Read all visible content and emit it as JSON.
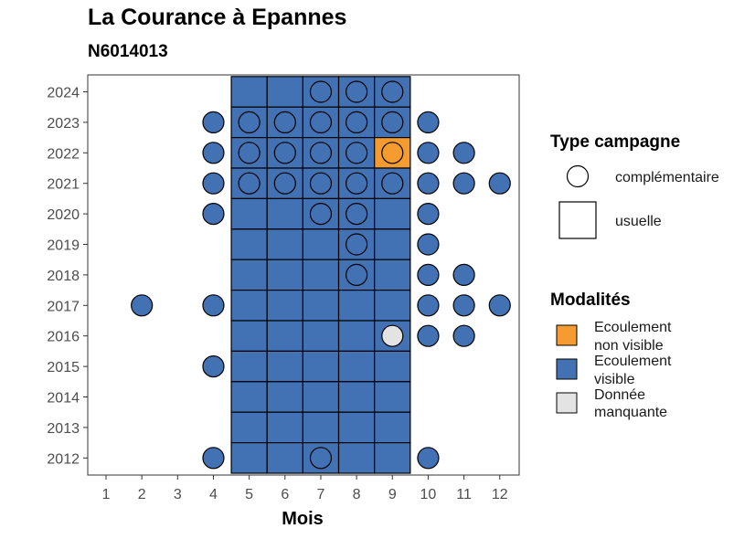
{
  "chart_data": {
    "type": "heatmap",
    "title": "La Courance à Epannes",
    "subtitle": "N6014013",
    "xlabel": "Mois",
    "ylabel": "",
    "x_ticks": [
      "1",
      "2",
      "3",
      "4",
      "5",
      "6",
      "7",
      "8",
      "9",
      "10",
      "11",
      "12"
    ],
    "y_ticks": [
      "2012",
      "2013",
      "2014",
      "2015",
      "2016",
      "2017",
      "2018",
      "2019",
      "2020",
      "2021",
      "2022",
      "2023",
      "2024"
    ],
    "grid": false,
    "legend_position": "right",
    "legend_shape": {
      "title": "Type campagne",
      "items": [
        {
          "label": "complémentaire",
          "shape": "circle"
        },
        {
          "label": "usuelle",
          "shape": "square"
        }
      ]
    },
    "legend_fill": {
      "title": "Modalités",
      "items": [
        {
          "key": "ecoulement_non_visible",
          "label_lines": [
            "Ecoulement",
            "non visible"
          ],
          "color": "#f59b2f"
        },
        {
          "key": "ecoulement_visible",
          "label_lines": [
            "Ecoulement",
            "visible"
          ],
          "color": "#4372b4"
        },
        {
          "key": "donnee_manquante",
          "label_lines": [
            "Donnée",
            "manquante"
          ],
          "color": "#e3e3e3"
        }
      ]
    },
    "squares": [
      {
        "month": 5,
        "year": 2024,
        "modalite": "ecoulement_visible"
      },
      {
        "month": 6,
        "year": 2024,
        "modalite": "ecoulement_visible"
      },
      {
        "month": 7,
        "year": 2024,
        "modalite": "ecoulement_visible"
      },
      {
        "month": 8,
        "year": 2024,
        "modalite": "ecoulement_visible"
      },
      {
        "month": 9,
        "year": 2024,
        "modalite": "ecoulement_visible"
      },
      {
        "month": 5,
        "year": 2023,
        "modalite": "ecoulement_visible"
      },
      {
        "month": 6,
        "year": 2023,
        "modalite": "ecoulement_visible"
      },
      {
        "month": 7,
        "year": 2023,
        "modalite": "ecoulement_visible"
      },
      {
        "month": 8,
        "year": 2023,
        "modalite": "ecoulement_visible"
      },
      {
        "month": 9,
        "year": 2023,
        "modalite": "ecoulement_visible"
      },
      {
        "month": 5,
        "year": 2022,
        "modalite": "ecoulement_visible"
      },
      {
        "month": 6,
        "year": 2022,
        "modalite": "ecoulement_visible"
      },
      {
        "month": 7,
        "year": 2022,
        "modalite": "ecoulement_visible"
      },
      {
        "month": 8,
        "year": 2022,
        "modalite": "ecoulement_visible"
      },
      {
        "month": 9,
        "year": 2022,
        "modalite": "ecoulement_non_visible"
      },
      {
        "month": 5,
        "year": 2021,
        "modalite": "ecoulement_visible"
      },
      {
        "month": 6,
        "year": 2021,
        "modalite": "ecoulement_visible"
      },
      {
        "month": 7,
        "year": 2021,
        "modalite": "ecoulement_visible"
      },
      {
        "month": 8,
        "year": 2021,
        "modalite": "ecoulement_visible"
      },
      {
        "month": 9,
        "year": 2021,
        "modalite": "ecoulement_visible"
      },
      {
        "month": 5,
        "year": 2020,
        "modalite": "ecoulement_visible"
      },
      {
        "month": 6,
        "year": 2020,
        "modalite": "ecoulement_visible"
      },
      {
        "month": 7,
        "year": 2020,
        "modalite": "ecoulement_visible"
      },
      {
        "month": 8,
        "year": 2020,
        "modalite": "ecoulement_visible"
      },
      {
        "month": 9,
        "year": 2020,
        "modalite": "ecoulement_visible"
      },
      {
        "month": 5,
        "year": 2019,
        "modalite": "ecoulement_visible"
      },
      {
        "month": 6,
        "year": 2019,
        "modalite": "ecoulement_visible"
      },
      {
        "month": 7,
        "year": 2019,
        "modalite": "ecoulement_visible"
      },
      {
        "month": 8,
        "year": 2019,
        "modalite": "ecoulement_visible"
      },
      {
        "month": 9,
        "year": 2019,
        "modalite": "ecoulement_visible"
      },
      {
        "month": 5,
        "year": 2018,
        "modalite": "ecoulement_visible"
      },
      {
        "month": 6,
        "year": 2018,
        "modalite": "ecoulement_visible"
      },
      {
        "month": 7,
        "year": 2018,
        "modalite": "ecoulement_visible"
      },
      {
        "month": 8,
        "year": 2018,
        "modalite": "ecoulement_visible"
      },
      {
        "month": 9,
        "year": 2018,
        "modalite": "ecoulement_visible"
      },
      {
        "month": 5,
        "year": 2017,
        "modalite": "ecoulement_visible"
      },
      {
        "month": 6,
        "year": 2017,
        "modalite": "ecoulement_visible"
      },
      {
        "month": 7,
        "year": 2017,
        "modalite": "ecoulement_visible"
      },
      {
        "month": 8,
        "year": 2017,
        "modalite": "ecoulement_visible"
      },
      {
        "month": 9,
        "year": 2017,
        "modalite": "ecoulement_visible"
      },
      {
        "month": 5,
        "year": 2016,
        "modalite": "ecoulement_visible"
      },
      {
        "month": 6,
        "year": 2016,
        "modalite": "ecoulement_visible"
      },
      {
        "month": 7,
        "year": 2016,
        "modalite": "ecoulement_visible"
      },
      {
        "month": 8,
        "year": 2016,
        "modalite": "ecoulement_visible"
      },
      {
        "month": 9,
        "year": 2016,
        "modalite": "ecoulement_visible"
      },
      {
        "month": 5,
        "year": 2015,
        "modalite": "ecoulement_visible"
      },
      {
        "month": 6,
        "year": 2015,
        "modalite": "ecoulement_visible"
      },
      {
        "month": 7,
        "year": 2015,
        "modalite": "ecoulement_visible"
      },
      {
        "month": 8,
        "year": 2015,
        "modalite": "ecoulement_visible"
      },
      {
        "month": 9,
        "year": 2015,
        "modalite": "ecoulement_visible"
      },
      {
        "month": 5,
        "year": 2014,
        "modalite": "ecoulement_visible"
      },
      {
        "month": 6,
        "year": 2014,
        "modalite": "ecoulement_visible"
      },
      {
        "month": 7,
        "year": 2014,
        "modalite": "ecoulement_visible"
      },
      {
        "month": 8,
        "year": 2014,
        "modalite": "ecoulement_visible"
      },
      {
        "month": 9,
        "year": 2014,
        "modalite": "ecoulement_visible"
      },
      {
        "month": 5,
        "year": 2013,
        "modalite": "ecoulement_visible"
      },
      {
        "month": 6,
        "year": 2013,
        "modalite": "ecoulement_visible"
      },
      {
        "month": 7,
        "year": 2013,
        "modalite": "ecoulement_visible"
      },
      {
        "month": 8,
        "year": 2013,
        "modalite": "ecoulement_visible"
      },
      {
        "month": 9,
        "year": 2013,
        "modalite": "ecoulement_visible"
      },
      {
        "month": 5,
        "year": 2012,
        "modalite": "ecoulement_visible"
      },
      {
        "month": 6,
        "year": 2012,
        "modalite": "ecoulement_visible"
      },
      {
        "month": 7,
        "year": 2012,
        "modalite": "ecoulement_visible"
      },
      {
        "month": 8,
        "year": 2012,
        "modalite": "ecoulement_visible"
      },
      {
        "month": 9,
        "year": 2012,
        "modalite": "ecoulement_visible"
      }
    ],
    "circles": [
      {
        "month": 7,
        "year": 2024,
        "modalite": "ecoulement_visible"
      },
      {
        "month": 8,
        "year": 2024,
        "modalite": "ecoulement_visible"
      },
      {
        "month": 9,
        "year": 2024,
        "modalite": "ecoulement_visible"
      },
      {
        "month": 4,
        "year": 2023,
        "modalite": "ecoulement_visible"
      },
      {
        "month": 5,
        "year": 2023,
        "modalite": "ecoulement_visible"
      },
      {
        "month": 6,
        "year": 2023,
        "modalite": "ecoulement_visible"
      },
      {
        "month": 7,
        "year": 2023,
        "modalite": "ecoulement_visible"
      },
      {
        "month": 8,
        "year": 2023,
        "modalite": "ecoulement_visible"
      },
      {
        "month": 9,
        "year": 2023,
        "modalite": "ecoulement_visible"
      },
      {
        "month": 10,
        "year": 2023,
        "modalite": "ecoulement_visible"
      },
      {
        "month": 4,
        "year": 2022,
        "modalite": "ecoulement_visible"
      },
      {
        "month": 5,
        "year": 2022,
        "modalite": "ecoulement_visible"
      },
      {
        "month": 6,
        "year": 2022,
        "modalite": "ecoulement_visible"
      },
      {
        "month": 7,
        "year": 2022,
        "modalite": "ecoulement_visible"
      },
      {
        "month": 8,
        "year": 2022,
        "modalite": "ecoulement_visible"
      },
      {
        "month": 9,
        "year": 2022,
        "modalite": "ecoulement_non_visible"
      },
      {
        "month": 10,
        "year": 2022,
        "modalite": "ecoulement_visible"
      },
      {
        "month": 11,
        "year": 2022,
        "modalite": "ecoulement_visible"
      },
      {
        "month": 4,
        "year": 2021,
        "modalite": "ecoulement_visible"
      },
      {
        "month": 5,
        "year": 2021,
        "modalite": "ecoulement_visible"
      },
      {
        "month": 6,
        "year": 2021,
        "modalite": "ecoulement_visible"
      },
      {
        "month": 7,
        "year": 2021,
        "modalite": "ecoulement_visible"
      },
      {
        "month": 8,
        "year": 2021,
        "modalite": "ecoulement_visible"
      },
      {
        "month": 9,
        "year": 2021,
        "modalite": "ecoulement_visible"
      },
      {
        "month": 10,
        "year": 2021,
        "modalite": "ecoulement_visible"
      },
      {
        "month": 11,
        "year": 2021,
        "modalite": "ecoulement_visible"
      },
      {
        "month": 12,
        "year": 2021,
        "modalite": "ecoulement_visible"
      },
      {
        "month": 4,
        "year": 2020,
        "modalite": "ecoulement_visible"
      },
      {
        "month": 7,
        "year": 2020,
        "modalite": "ecoulement_visible"
      },
      {
        "month": 8,
        "year": 2020,
        "modalite": "ecoulement_visible"
      },
      {
        "month": 10,
        "year": 2020,
        "modalite": "ecoulement_visible"
      },
      {
        "month": 8,
        "year": 2019,
        "modalite": "ecoulement_visible"
      },
      {
        "month": 10,
        "year": 2019,
        "modalite": "ecoulement_visible"
      },
      {
        "month": 8,
        "year": 2018,
        "modalite": "ecoulement_visible"
      },
      {
        "month": 10,
        "year": 2018,
        "modalite": "ecoulement_visible"
      },
      {
        "month": 11,
        "year": 2018,
        "modalite": "ecoulement_visible"
      },
      {
        "month": 2,
        "year": 2017,
        "modalite": "ecoulement_visible"
      },
      {
        "month": 4,
        "year": 2017,
        "modalite": "ecoulement_visible"
      },
      {
        "month": 10,
        "year": 2017,
        "modalite": "ecoulement_visible"
      },
      {
        "month": 11,
        "year": 2017,
        "modalite": "ecoulement_visible"
      },
      {
        "month": 12,
        "year": 2017,
        "modalite": "ecoulement_visible"
      },
      {
        "month": 9,
        "year": 2016,
        "modalite": "donnee_manquante"
      },
      {
        "month": 10,
        "year": 2016,
        "modalite": "ecoulement_visible"
      },
      {
        "month": 11,
        "year": 2016,
        "modalite": "ecoulement_visible"
      },
      {
        "month": 4,
        "year": 2015,
        "modalite": "ecoulement_visible"
      },
      {
        "month": 4,
        "year": 2012,
        "modalite": "ecoulement_visible"
      },
      {
        "month": 7,
        "year": 2012,
        "modalite": "ecoulement_visible"
      },
      {
        "month": 10,
        "year": 2012,
        "modalite": "ecoulement_visible"
      }
    ]
  }
}
